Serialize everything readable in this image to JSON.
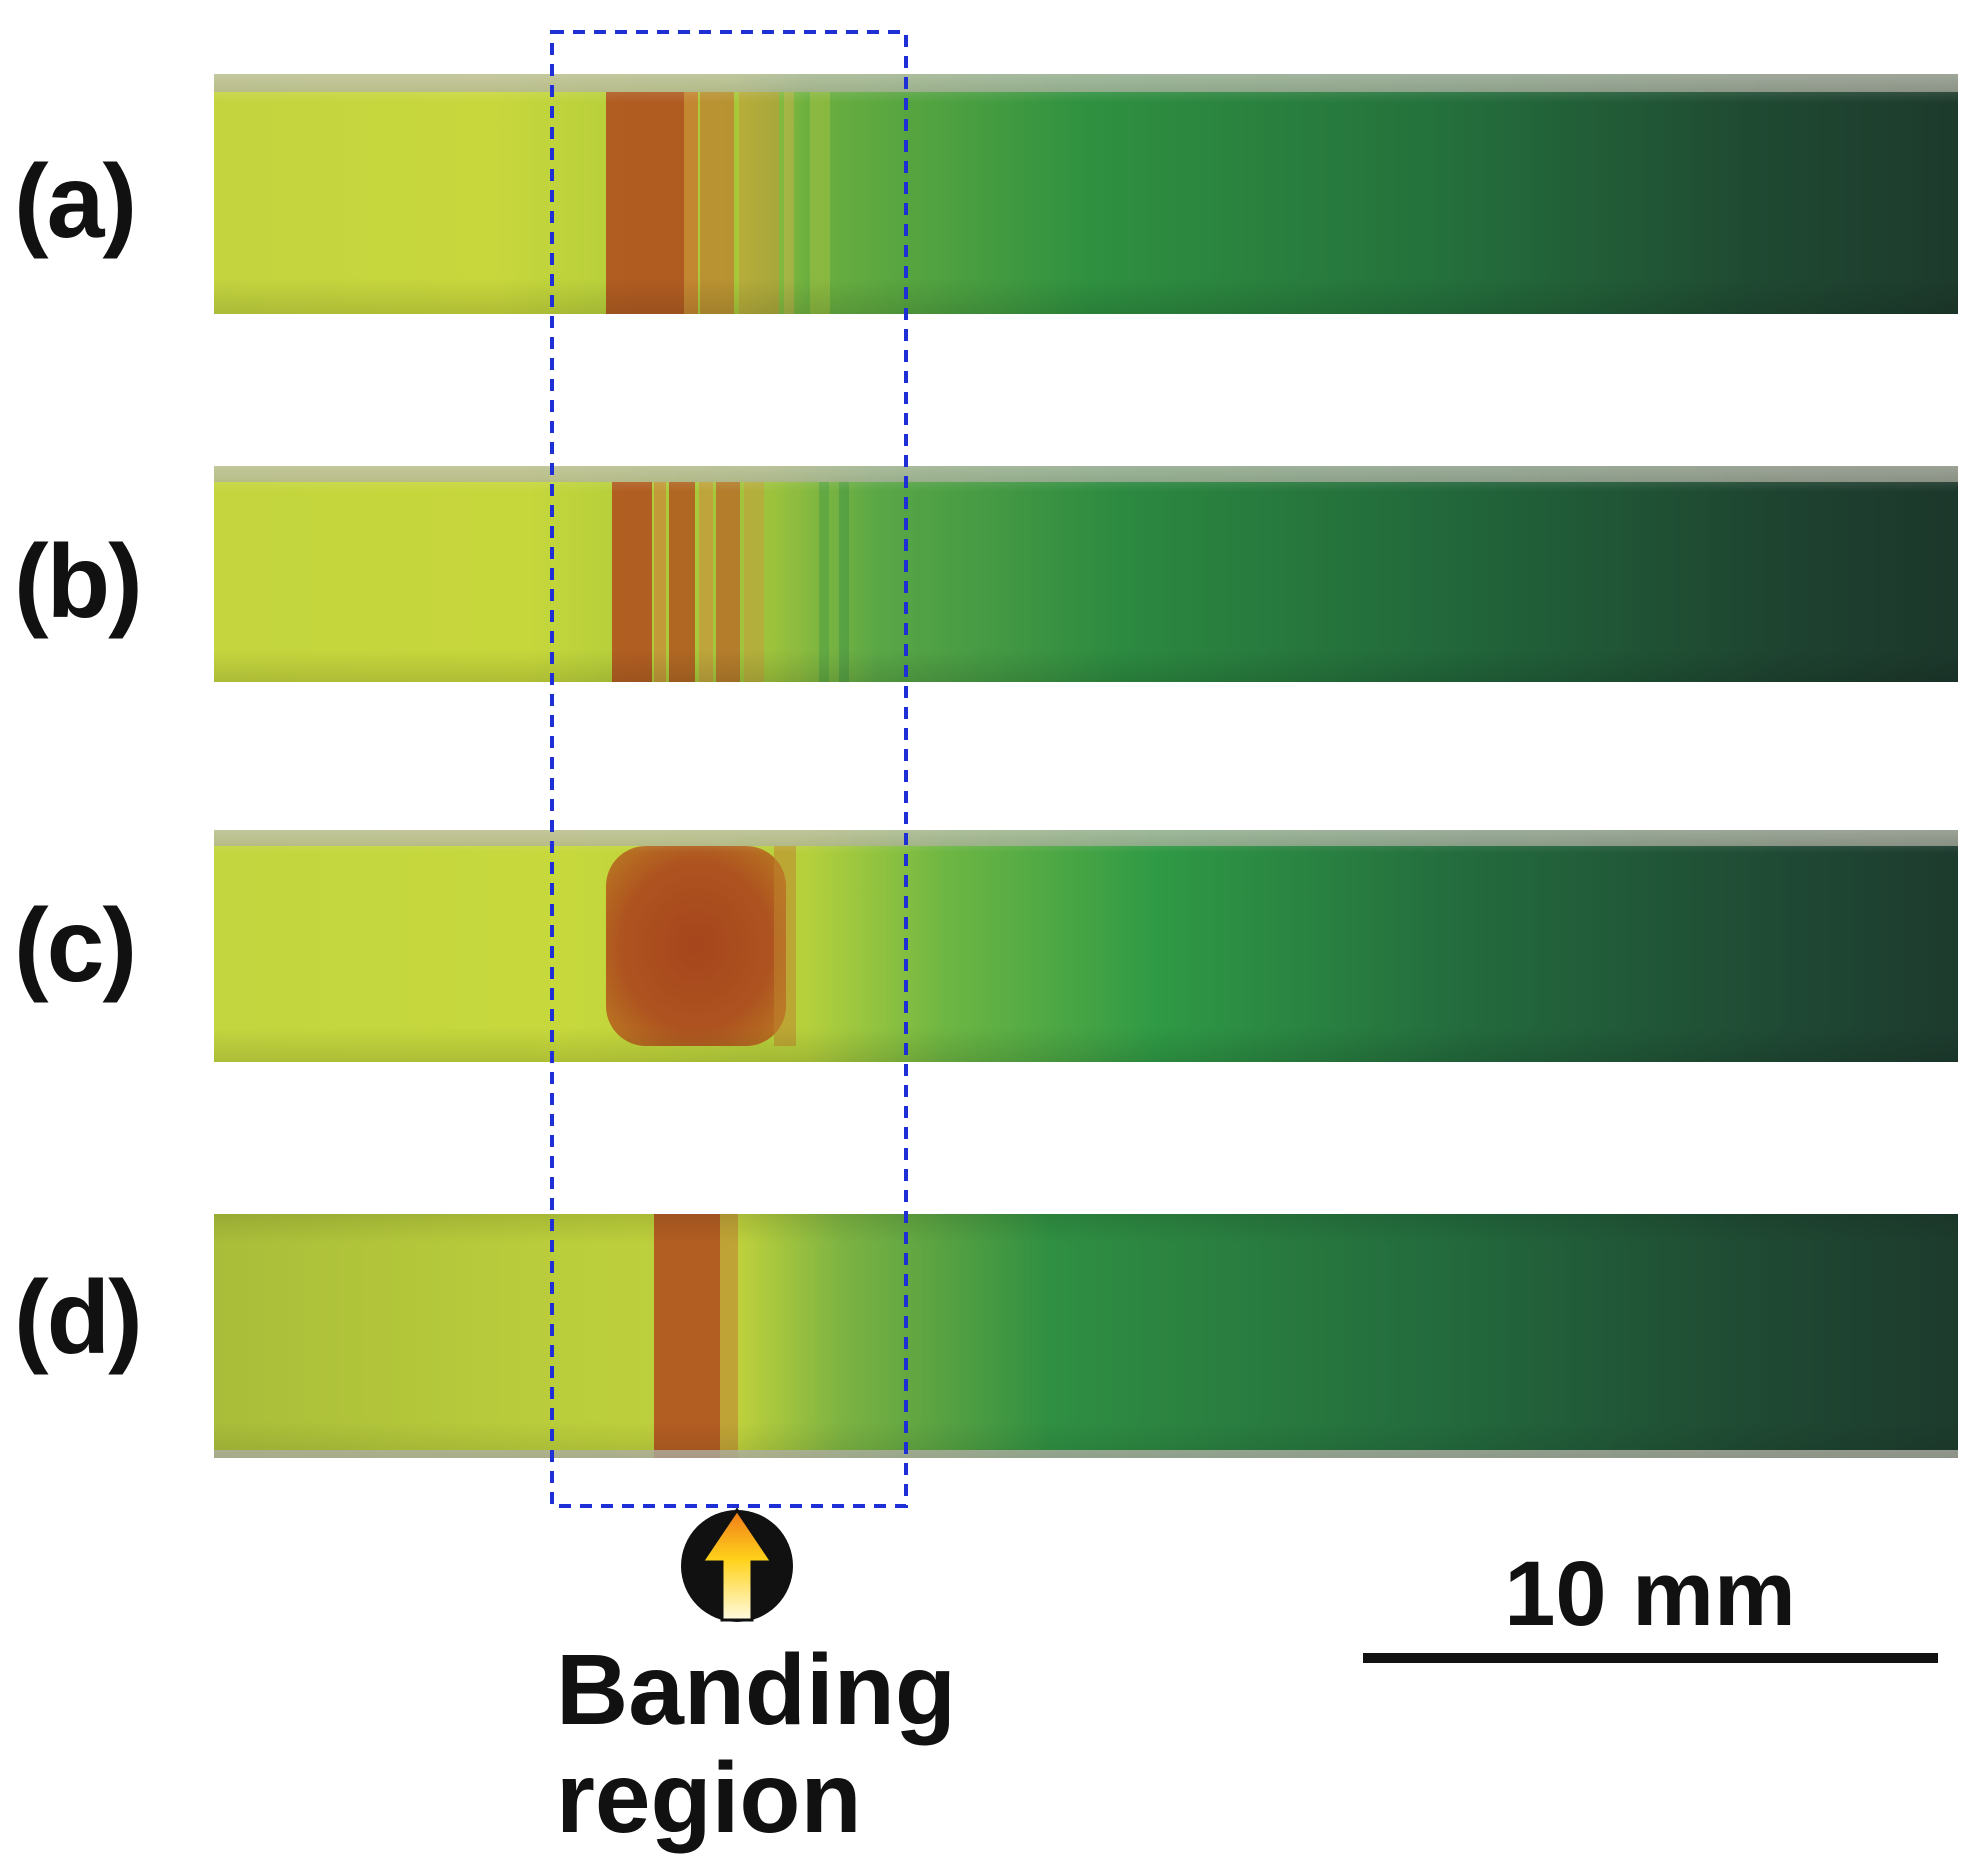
{
  "panels": [
    {
      "label": "(a)"
    },
    {
      "label": "(b)"
    },
    {
      "label": "(c)"
    },
    {
      "label": "(d)"
    }
  ],
  "annotations": {
    "banding_region": "Banding\nregion",
    "scale_bar": "10 mm"
  },
  "colors": {
    "highlight_box": "#1f2fd6",
    "scale_bar": "#111111",
    "yellow_green": "#c7d83a",
    "rust_band": "#a8451c",
    "green": "#2f8f3a",
    "dark_green": "#1e3a2a"
  },
  "icons": {
    "arrow": "up-arrow-icon"
  }
}
